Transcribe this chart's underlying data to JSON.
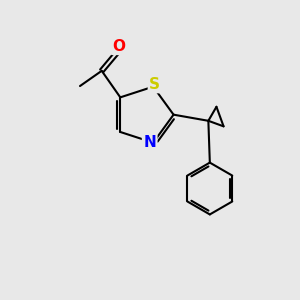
{
  "background_color": "#e8e8e8",
  "bond_color": "#000000",
  "bond_width": 1.5,
  "atoms": {
    "S": {
      "color": "#cccc00",
      "fontsize": 11,
      "fontweight": "bold"
    },
    "N": {
      "color": "#0000ff",
      "fontsize": 11,
      "fontweight": "bold"
    },
    "O": {
      "color": "#ff0000",
      "fontsize": 11,
      "fontweight": "bold"
    }
  },
  "figsize": [
    3.0,
    3.0
  ],
  "dpi": 100,
  "xlim": [
    0,
    10
  ],
  "ylim": [
    0,
    10
  ]
}
